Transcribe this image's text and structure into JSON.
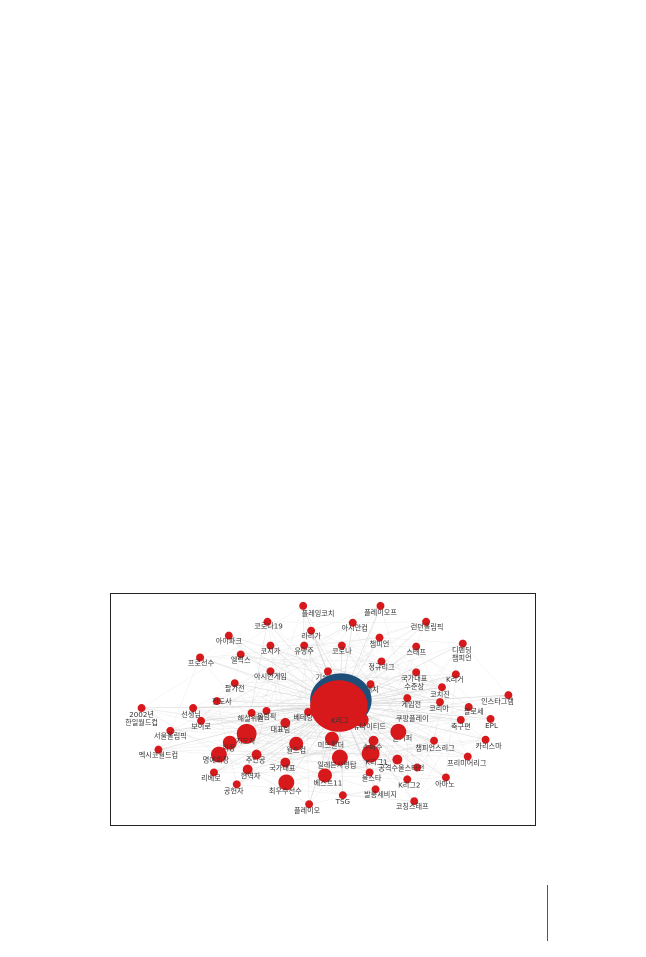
{
  "figure": {
    "hub": "K리그",
    "colors": {
      "node": "#d7191c",
      "hub_ring": "#1f4e79",
      "edge": "#d0d0d0"
    },
    "nodes": [
      "플레잉코치",
      "코로나19",
      "라리가",
      "아이파크",
      "코치가",
      "유망주",
      "엘릭스",
      "프로선수",
      "아시안게임",
      "팔가전",
      "전도사",
      "2002년 한일월드컵",
      "선생님",
      "보이로",
      "서울올림픽",
      "멕시코월드컵",
      "올림픽",
      "해설위원",
      "지도자",
      "회장",
      "명예회장",
      "주인공",
      "현역자",
      "리베로",
      "공헌자",
      "최우수선수",
      "플레이오",
      "국가대표",
      "베테랑",
      "대표팀",
      "월드컵",
      "미드필더",
      "일레븐사령탑",
      "베스트11",
      "기술 고문",
      "A매치",
      "유나이티드",
      "수비수",
      "K리그1",
      "올스타",
      "TSG",
      "발롱세비지",
      "K리그2",
      "코칭스태프",
      "아마노",
      "공격수올스타전",
      "프리미어리그",
      "골키퍼",
      "쿠팡플레이",
      "챔피언스리그",
      "카리스마",
      "축구편",
      "EPL",
      "팔로세",
      "코리아",
      "게임전",
      "코치진",
      "국가대표 수준상",
      "K리거",
      "인스타그램",
      "정규리그",
      "스태프",
      "디펜딩 챔피언",
      "코로나",
      "챔피언",
      "아시안컵",
      "런던올림픽",
      "플레이오프"
    ]
  }
}
